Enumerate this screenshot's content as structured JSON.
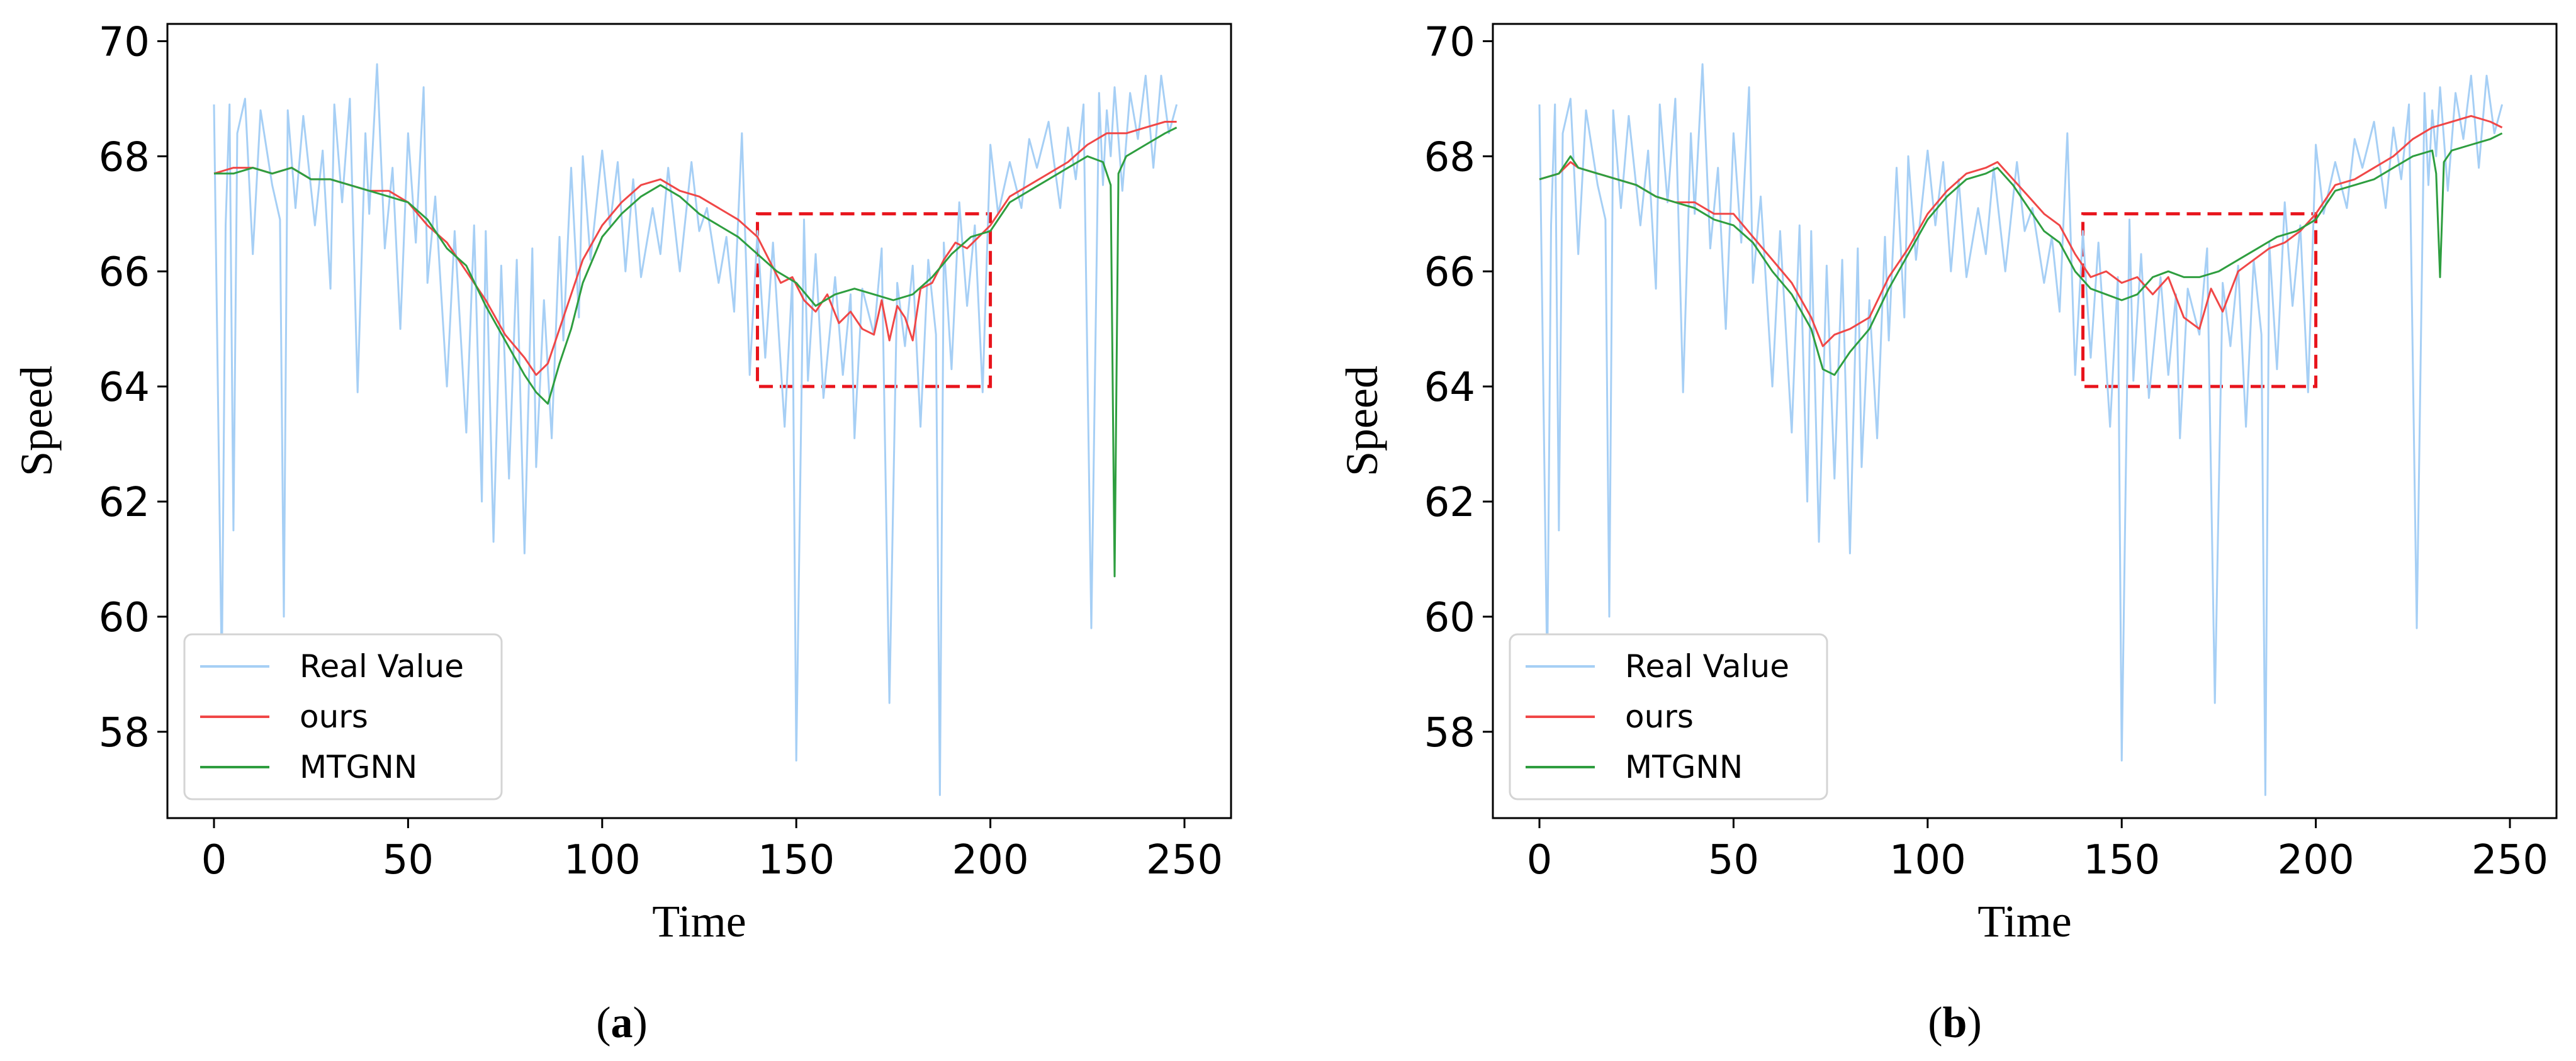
{
  "chart_data": [
    {
      "type": "line",
      "panel": "a",
      "caption": "(a)",
      "caption_letter": "a",
      "xlabel": "Time",
      "ylabel": "Speed",
      "xlim": [
        -12,
        262
      ],
      "ylim": [
        56.5,
        70.3
      ],
      "xticks": [
        0,
        50,
        100,
        150,
        200,
        250
      ],
      "yticks": [
        58,
        60,
        62,
        64,
        66,
        68,
        70
      ],
      "legend_position": "lower-left",
      "highlight_box": {
        "x": [
          140,
          200
        ],
        "y": [
          64,
          67
        ],
        "color": "#e8141c",
        "style": "dashed"
      },
      "series": [
        {
          "name": "Real Value",
          "color": "#a6cff5",
          "x": [
            0,
            2,
            3,
            4,
            5,
            6,
            8,
            10,
            12,
            15,
            17,
            18,
            19,
            21,
            23,
            26,
            28,
            30,
            31,
            33,
            35,
            37,
            39,
            40,
            42,
            44,
            46,
            48,
            50,
            52,
            54,
            55,
            57,
            60,
            62,
            65,
            67,
            69,
            70,
            72,
            74,
            76,
            78,
            80,
            82,
            83,
            85,
            87,
            89,
            90,
            92,
            94,
            95,
            97,
            100,
            102,
            104,
            106,
            108,
            110,
            113,
            115,
            117,
            120,
            123,
            125,
            127,
            130,
            132,
            134,
            136,
            138,
            140,
            142,
            144,
            147,
            149,
            150,
            152,
            153,
            155,
            157,
            160,
            162,
            164,
            165,
            167,
            170,
            172,
            174,
            176,
            178,
            180,
            182,
            184,
            186,
            187,
            188,
            190,
            192,
            194,
            196,
            198,
            200,
            202,
            205,
            208,
            210,
            212,
            215,
            218,
            220,
            222,
            224,
            226,
            228,
            229,
            230,
            231,
            232,
            234,
            236,
            238,
            240,
            242,
            244,
            246,
            248
          ],
          "values": [
            68.9,
            59.0,
            66.8,
            68.9,
            61.5,
            68.4,
            69.0,
            66.3,
            68.8,
            67.5,
            66.9,
            60.0,
            68.8,
            67.1,
            68.7,
            66.8,
            68.1,
            65.7,
            68.9,
            67.2,
            69.0,
            63.9,
            68.4,
            67.0,
            69.6,
            66.4,
            67.8,
            65.0,
            68.4,
            66.5,
            69.2,
            65.8,
            67.3,
            64.0,
            66.7,
            63.2,
            66.8,
            62.0,
            66.7,
            61.3,
            66.1,
            62.4,
            66.2,
            61.1,
            66.4,
            62.6,
            65.5,
            63.1,
            66.6,
            64.8,
            67.8,
            65.2,
            68.0,
            66.2,
            68.1,
            66.8,
            67.9,
            66.0,
            67.6,
            65.9,
            67.1,
            66.3,
            67.8,
            66.0,
            67.9,
            66.7,
            67.1,
            65.8,
            66.6,
            65.3,
            68.4,
            64.2,
            66.7,
            64.5,
            66.5,
            63.3,
            65.9,
            57.5,
            66.9,
            64.1,
            66.3,
            63.8,
            65.9,
            64.2,
            65.6,
            63.1,
            65.7,
            64.9,
            66.4,
            58.5,
            65.8,
            64.7,
            66.1,
            63.3,
            66.2,
            64.9,
            56.9,
            66.5,
            64.3,
            67.2,
            65.4,
            66.8,
            63.9,
            68.2,
            67.0,
            67.9,
            67.1,
            68.3,
            67.8,
            68.6,
            67.1,
            68.5,
            67.6,
            68.9,
            59.8,
            69.1,
            67.5,
            68.8,
            68.0,
            69.2,
            67.4,
            69.1,
            68.3,
            69.4,
            67.8,
            69.4,
            68.4,
            68.9
          ]
        },
        {
          "name": "ours",
          "color": "#f04747",
          "x": [
            0,
            5,
            10,
            15,
            20,
            25,
            30,
            35,
            40,
            45,
            50,
            55,
            60,
            65,
            70,
            75,
            80,
            83,
            86,
            89,
            92,
            95,
            100,
            105,
            110,
            115,
            120,
            125,
            130,
            135,
            140,
            143,
            146,
            149,
            152,
            155,
            158,
            161,
            164,
            167,
            170,
            172,
            174,
            176,
            178,
            180,
            182,
            185,
            188,
            191,
            194,
            197,
            200,
            205,
            210,
            215,
            220,
            225,
            230,
            235,
            240,
            245,
            248
          ],
          "values": [
            67.7,
            67.8,
            67.8,
            67.7,
            67.8,
            67.6,
            67.6,
            67.5,
            67.4,
            67.4,
            67.2,
            66.8,
            66.5,
            66.0,
            65.5,
            64.9,
            64.5,
            64.2,
            64.4,
            65.0,
            65.6,
            66.2,
            66.8,
            67.2,
            67.5,
            67.6,
            67.4,
            67.3,
            67.1,
            66.9,
            66.6,
            66.2,
            65.8,
            65.9,
            65.5,
            65.3,
            65.6,
            65.1,
            65.3,
            65.0,
            64.9,
            65.5,
            64.8,
            65.4,
            65.2,
            64.8,
            65.7,
            65.8,
            66.2,
            66.5,
            66.4,
            66.6,
            66.8,
            67.3,
            67.5,
            67.7,
            67.9,
            68.2,
            68.4,
            68.4,
            68.5,
            68.6,
            68.6
          ]
        },
        {
          "name": "MTGNN",
          "color": "#2e9e3f",
          "x": [
            0,
            5,
            10,
            15,
            20,
            25,
            30,
            35,
            40,
            45,
            50,
            55,
            60,
            65,
            70,
            75,
            80,
            83,
            86,
            89,
            92,
            95,
            100,
            105,
            110,
            115,
            120,
            125,
            130,
            135,
            140,
            145,
            150,
            155,
            160,
            165,
            170,
            175,
            180,
            185,
            190,
            195,
            200,
            205,
            210,
            215,
            220,
            225,
            229,
            231,
            232,
            233,
            235,
            240,
            245,
            248
          ],
          "values": [
            67.7,
            67.7,
            67.8,
            67.7,
            67.8,
            67.6,
            67.6,
            67.5,
            67.4,
            67.3,
            67.2,
            66.9,
            66.4,
            66.1,
            65.4,
            64.8,
            64.2,
            63.9,
            63.7,
            64.4,
            65.0,
            65.8,
            66.6,
            67.0,
            67.3,
            67.5,
            67.3,
            67.0,
            66.8,
            66.6,
            66.3,
            66.0,
            65.8,
            65.4,
            65.6,
            65.7,
            65.6,
            65.5,
            65.6,
            65.9,
            66.3,
            66.6,
            66.7,
            67.2,
            67.4,
            67.6,
            67.8,
            68.0,
            67.9,
            67.5,
            60.7,
            67.7,
            68.0,
            68.2,
            68.4,
            68.5
          ]
        }
      ]
    },
    {
      "type": "line",
      "panel": "b",
      "caption": "(b)",
      "caption_letter": "b",
      "xlabel": "Time",
      "ylabel": "Speed",
      "xlim": [
        -12,
        262
      ],
      "ylim": [
        56.5,
        70.3
      ],
      "xticks": [
        0,
        50,
        100,
        150,
        200,
        250
      ],
      "yticks": [
        58,
        60,
        62,
        64,
        66,
        68,
        70
      ],
      "legend_position": "lower-left",
      "highlight_box": {
        "x": [
          140,
          200
        ],
        "y": [
          64,
          67
        ],
        "color": "#e8141c",
        "style": "dashed"
      },
      "series": [
        {
          "name": "Real Value",
          "color": "#a6cff5",
          "x": [
            0,
            2,
            3,
            4,
            5,
            6,
            8,
            10,
            12,
            15,
            17,
            18,
            19,
            21,
            23,
            26,
            28,
            30,
            31,
            33,
            35,
            37,
            39,
            40,
            42,
            44,
            46,
            48,
            50,
            52,
            54,
            55,
            57,
            60,
            62,
            65,
            67,
            69,
            70,
            72,
            74,
            76,
            78,
            80,
            82,
            83,
            85,
            87,
            89,
            90,
            92,
            94,
            95,
            97,
            100,
            102,
            104,
            106,
            108,
            110,
            113,
            115,
            117,
            120,
            123,
            125,
            127,
            130,
            132,
            134,
            136,
            138,
            140,
            142,
            144,
            147,
            149,
            150,
            152,
            153,
            155,
            157,
            160,
            162,
            164,
            165,
            167,
            170,
            172,
            174,
            176,
            178,
            180,
            182,
            184,
            186,
            187,
            188,
            190,
            192,
            194,
            196,
            198,
            200,
            202,
            205,
            208,
            210,
            212,
            215,
            218,
            220,
            222,
            224,
            226,
            228,
            229,
            230,
            231,
            232,
            234,
            236,
            238,
            240,
            242,
            244,
            246,
            248
          ],
          "values": [
            68.9,
            59.0,
            66.8,
            68.9,
            61.5,
            68.4,
            69.0,
            66.3,
            68.8,
            67.5,
            66.9,
            60.0,
            68.8,
            67.1,
            68.7,
            66.8,
            68.1,
            65.7,
            68.9,
            67.2,
            69.0,
            63.9,
            68.4,
            67.0,
            69.6,
            66.4,
            67.8,
            65.0,
            68.4,
            66.5,
            69.2,
            65.8,
            67.3,
            64.0,
            66.7,
            63.2,
            66.8,
            62.0,
            66.7,
            61.3,
            66.1,
            62.4,
            66.2,
            61.1,
            66.4,
            62.6,
            65.5,
            63.1,
            66.6,
            64.8,
            67.8,
            65.2,
            68.0,
            66.2,
            68.1,
            66.8,
            67.9,
            66.0,
            67.6,
            65.9,
            67.1,
            66.3,
            67.8,
            66.0,
            67.9,
            66.7,
            67.1,
            65.8,
            66.6,
            65.3,
            68.4,
            64.2,
            66.7,
            64.5,
            66.5,
            63.3,
            65.9,
            57.5,
            66.9,
            64.1,
            66.3,
            63.8,
            65.9,
            64.2,
            65.6,
            63.1,
            65.7,
            64.9,
            66.4,
            58.5,
            65.8,
            64.7,
            66.1,
            63.3,
            66.2,
            64.9,
            56.9,
            66.5,
            64.3,
            67.2,
            65.4,
            66.8,
            63.9,
            68.2,
            67.0,
            67.9,
            67.1,
            68.3,
            67.8,
            68.6,
            67.1,
            68.5,
            67.6,
            68.9,
            59.8,
            69.1,
            67.5,
            68.8,
            68.0,
            69.2,
            67.4,
            69.1,
            68.3,
            69.4,
            67.8,
            69.4,
            68.4,
            68.9
          ]
        },
        {
          "name": "ours",
          "color": "#f04747",
          "x": [
            0,
            5,
            8,
            10,
            15,
            20,
            25,
            30,
            35,
            40,
            45,
            50,
            55,
            60,
            65,
            70,
            73,
            76,
            80,
            85,
            90,
            95,
            100,
            105,
            110,
            115,
            118,
            122,
            126,
            130,
            134,
            138,
            142,
            146,
            150,
            154,
            158,
            162,
            166,
            170,
            173,
            176,
            180,
            184,
            188,
            192,
            196,
            200,
            205,
            210,
            215,
            220,
            225,
            230,
            235,
            240,
            245,
            248
          ],
          "values": [
            67.6,
            67.7,
            67.9,
            67.8,
            67.7,
            67.6,
            67.5,
            67.3,
            67.2,
            67.2,
            67.0,
            67.0,
            66.6,
            66.2,
            65.8,
            65.2,
            64.7,
            64.9,
            65.0,
            65.2,
            65.9,
            66.4,
            67.0,
            67.4,
            67.7,
            67.8,
            67.9,
            67.6,
            67.3,
            67.0,
            66.8,
            66.3,
            65.9,
            66.0,
            65.8,
            65.9,
            65.6,
            65.9,
            65.2,
            65.0,
            65.7,
            65.3,
            66.0,
            66.2,
            66.4,
            66.5,
            66.7,
            67.0,
            67.5,
            67.6,
            67.8,
            68.0,
            68.3,
            68.5,
            68.6,
            68.7,
            68.6,
            68.5
          ]
        },
        {
          "name": "MTGNN",
          "color": "#2e9e3f",
          "x": [
            0,
            5,
            8,
            10,
            15,
            20,
            25,
            30,
            35,
            40,
            45,
            50,
            55,
            60,
            65,
            70,
            73,
            76,
            80,
            85,
            90,
            95,
            100,
            105,
            110,
            115,
            118,
            122,
            126,
            130,
            134,
            138,
            142,
            146,
            150,
            154,
            158,
            162,
            166,
            170,
            175,
            180,
            185,
            190,
            195,
            200,
            205,
            210,
            215,
            220,
            225,
            230,
            231,
            232,
            233,
            235,
            240,
            245,
            248
          ],
          "values": [
            67.6,
            67.7,
            68.0,
            67.8,
            67.7,
            67.6,
            67.5,
            67.3,
            67.2,
            67.1,
            66.9,
            66.8,
            66.5,
            66.0,
            65.6,
            65.0,
            64.3,
            64.2,
            64.6,
            65.0,
            65.7,
            66.3,
            66.9,
            67.3,
            67.6,
            67.7,
            67.8,
            67.5,
            67.1,
            66.7,
            66.5,
            66.0,
            65.7,
            65.6,
            65.5,
            65.6,
            65.9,
            66.0,
            65.9,
            65.9,
            66.0,
            66.2,
            66.4,
            66.6,
            66.7,
            66.9,
            67.4,
            67.5,
            67.6,
            67.8,
            68.0,
            68.1,
            67.7,
            65.9,
            67.9,
            68.1,
            68.2,
            68.3,
            68.4
          ]
        }
      ]
    }
  ]
}
